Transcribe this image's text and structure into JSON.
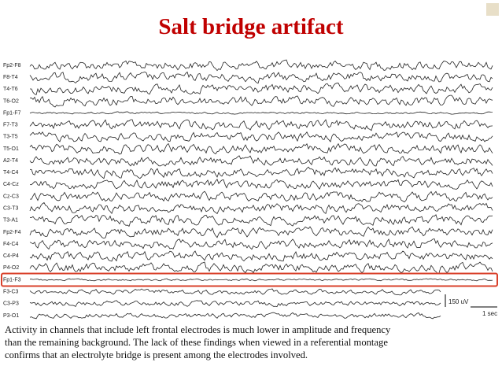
{
  "header": {
    "title": "Salt bridge artifact"
  },
  "eeg": {
    "channels": [
      "Fp2-F8",
      "F8-T4",
      "T4-T6",
      "T6-O2",
      "Fp1-F7",
      "F7-T3",
      "T3-T5",
      "T5-O1",
      "A2-T4",
      "T4-C4",
      "C4-Cz",
      "Cz-C3",
      "C3-T3",
      "T3-A1",
      "Fp2-F4",
      "F4-C4",
      "C4-P4",
      "P4-O2",
      "Fp1-F3",
      "F3-C3",
      "C3-P3",
      "P3-O1"
    ],
    "scale_amplitude": "150 uV",
    "scale_time": "1 sec"
  },
  "caption": {
    "lines": [
      "Activity in channels that include left frontal electrodes is much lower in amplitude and frequency",
      "than the remaining background. The lack of these findings when viewed in a referential montage",
      "confirms that an electrolyte bridge is present among the electrodes involved."
    ]
  }
}
